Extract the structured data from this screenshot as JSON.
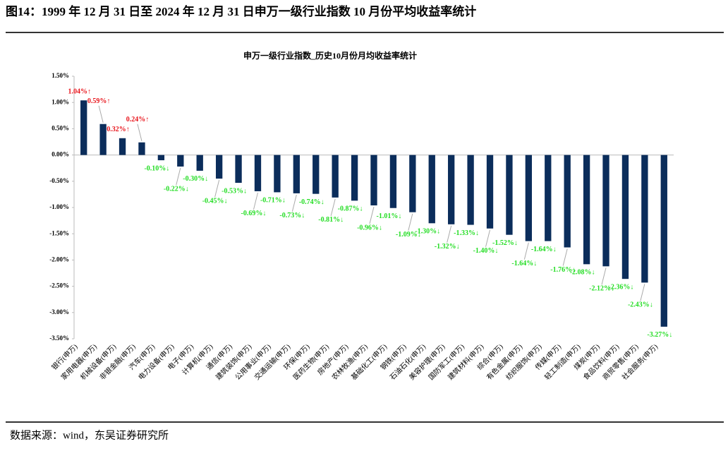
{
  "header": {
    "title": "图14：1999 年 12 月 31 日至 2024 年 12 月 31 日申万一级行业指数 10 月份平均收益率统计"
  },
  "chart_data": {
    "type": "bar",
    "title": "申万一级行业指数_历史10月份月均收益率统计",
    "categories": [
      "银行(申万)",
      "家用电器(申万)",
      "机械设备(申万)",
      "非银金融(申万)",
      "汽车(申万)",
      "电力设备(申万)",
      "电子(申万)",
      "计算机(申万)",
      "通信(申万)",
      "建筑装饰(申万)",
      "公用事业(申万)",
      "交通运输(申万)",
      "环保(申万)",
      "医药生物(申万)",
      "房地产(申万)",
      "农林牧渔(申万)",
      "基础化工(申万)",
      "钢铁(申万)",
      "石油石化(申万)",
      "美容护理(申万)",
      "国防军工(申万)",
      "建筑材料(申万)",
      "综合(申万)",
      "有色金属(申万)",
      "纺织服饰(申万)",
      "传媒(申万)",
      "轻工制造(申万)",
      "煤炭(申万)",
      "食品饮料(申万)",
      "商贸零售(申万)",
      "社会服务(申万)"
    ],
    "values": [
      1.04,
      0.59,
      0.32,
      0.24,
      -0.1,
      -0.22,
      -0.3,
      -0.45,
      -0.53,
      -0.69,
      -0.71,
      -0.73,
      -0.74,
      -0.81,
      -0.87,
      -0.96,
      -1.01,
      -1.09,
      -1.3,
      -1.32,
      -1.33,
      -1.4,
      -1.52,
      -1.64,
      -1.64,
      -1.76,
      -2.08,
      -2.12,
      -2.36,
      -2.43,
      -3.27
    ],
    "value_labels": [
      "1.04%↑",
      "0.59%↑",
      "0.32%↑",
      "0.24%↑",
      "-0.10%↓",
      "-0.22%↓",
      "-0.30%↓",
      "-0.45%↓",
      "-0.53%↓",
      "-0.69%↓",
      "-0.71%↓",
      "-0.73%↓",
      "-0.74%↓",
      "-0.81%↓",
      "-0.87%↓",
      "-0.96%↓",
      "-1.01%↓",
      "-1.09%↓",
      "-1.30%↓",
      "-1.32%↓",
      "-1.33%↓",
      "-1.40%↓",
      "-1.52%↓",
      "-1.64%↓",
      "-1.64%↓",
      "-1.76%↓",
      "-2.08%↓",
      "-2.12%↓",
      "-2.36%↓",
      "-2.43%↓",
      "-3.27%↓"
    ],
    "color": "#0b2d5b",
    "positive_label_color": "#e8141b",
    "negative_label_color": "#22dd22",
    "ylim": [
      -3.5,
      1.5
    ],
    "yticks": [
      {
        "value": -3.5,
        "label": "-3.50%"
      },
      {
        "value": -3,
        "label": "-3.00%"
      },
      {
        "value": -2.5,
        "label": "-2.50%"
      },
      {
        "value": -2,
        "label": "-2.00%"
      },
      {
        "value": -1.5,
        "label": "-1.50%"
      },
      {
        "value": -1,
        "label": "-1.00%"
      },
      {
        "value": -0.5,
        "label": "-0.50%"
      },
      {
        "value": 0,
        "label": "0.00%"
      },
      {
        "value": 0.5,
        "label": "0.50%"
      },
      {
        "value": 1,
        "label": "1.00%"
      },
      {
        "value": 1.5,
        "label": "1.50%"
      }
    ],
    "grid": false
  },
  "footer": {
    "source": "数据来源：wind，东吴证券研究所"
  }
}
